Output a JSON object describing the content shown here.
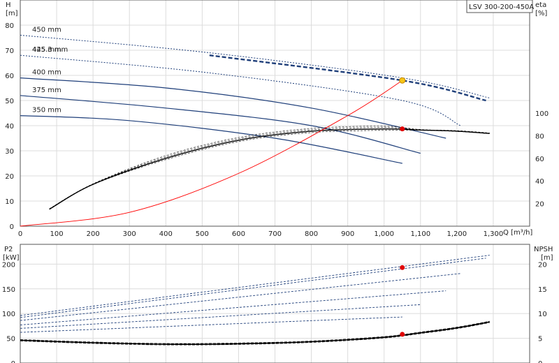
{
  "chart_data": [
    {
      "type": "line",
      "title": "LSV 300-200-450A",
      "xlabel": "Q [m³/h]",
      "ylabel_left": "H",
      "ylabel_left_unit": "[m]",
      "ylabel_right": "eta",
      "ylabel_right_unit": "[%]",
      "xlim": [
        0,
        1400
      ],
      "ylim_left": [
        0,
        90
      ],
      "ylim_right": [
        0,
        100
      ],
      "x_ticks": [
        "0",
        "100",
        "200",
        "300",
        "400",
        "500",
        "600",
        "700",
        "800",
        "900",
        "1,000",
        "1,100",
        "1,200",
        "1,300"
      ],
      "y_ticks_left": [
        "0",
        "10",
        "20",
        "30",
        "40",
        "50",
        "60",
        "70",
        "80"
      ],
      "y_ticks_right": [
        "20",
        "40",
        "60",
        "80",
        "100"
      ],
      "grid": true,
      "head_series": [
        {
          "name": "450 mm",
          "style": "dotted",
          "x": [
            0,
            520,
            1050,
            1290
          ],
          "y": [
            76,
            69,
            59,
            51
          ]
        },
        {
          "name": "445.3 mm",
          "style": "bold-dashed",
          "x": [
            520,
            1050,
            1280
          ],
          "y": [
            68,
            58,
            50
          ]
        },
        {
          "name": "425 mm",
          "style": "dotted",
          "x": [
            0,
            520,
            1050,
            1210
          ],
          "y": [
            68,
            61,
            50,
            40
          ]
        },
        {
          "name": "400 mm",
          "style": "solid-dashed",
          "x": [
            0,
            400,
            800,
            1170
          ],
          "y": [
            59,
            55,
            47,
            35
          ]
        },
        {
          "name": "375 mm",
          "style": "solid-dashed",
          "x": [
            0,
            400,
            800,
            1100
          ],
          "y": [
            52,
            47,
            40,
            29
          ]
        },
        {
          "name": "350 mm",
          "style": "solid-dashed",
          "x": [
            0,
            300,
            700,
            1050
          ],
          "y": [
            44,
            42,
            35,
            25
          ]
        }
      ],
      "efficiency_series": {
        "name": "eta",
        "x": [
          80,
          200,
          400,
          600,
          800,
          1000,
          1100,
          1200,
          1290
        ],
        "y": [
          15,
          37,
          60,
          76,
          84,
          86,
          85,
          84,
          82
        ]
      },
      "system_curve": {
        "x": [
          0,
          300,
          600,
          900,
          1050
        ],
        "y": [
          0,
          5.5,
          21,
          44,
          58
        ]
      },
      "duty_point_head": {
        "x": 1050,
        "y": 58
      },
      "duty_point_eta": {
        "x": 1050,
        "y": 86
      }
    },
    {
      "type": "line",
      "ylabel_left": "P2",
      "ylabel_left_unit": "[kW]",
      "ylabel_right": "NPSH",
      "ylabel_right_unit": "[m]",
      "xlim": [
        0,
        1400
      ],
      "ylim_left": [
        0,
        240
      ],
      "ylim_right": [
        0,
        24
      ],
      "y_ticks_left": [
        "0",
        "50",
        "100",
        "150",
        "200"
      ],
      "y_ticks_right": [
        "0",
        "5",
        "10",
        "15",
        "20"
      ],
      "grid": true,
      "power_series": [
        {
          "name": "450 mm",
          "x": [
            0,
            1290
          ],
          "y": [
            96,
            218
          ]
        },
        {
          "name": "445.3 mm",
          "x": [
            0,
            1280
          ],
          "y": [
            92,
            212
          ]
        },
        {
          "name": "425 mm",
          "x": [
            0,
            1210
          ],
          "y": [
            86,
            181
          ]
        },
        {
          "name": "400 mm",
          "x": [
            0,
            1170
          ],
          "y": [
            77,
            146
          ]
        },
        {
          "name": "375 mm",
          "x": [
            0,
            1100
          ],
          "y": [
            70,
            118
          ]
        },
        {
          "name": "350 mm",
          "x": [
            0,
            1050
          ],
          "y": [
            62,
            93
          ]
        }
      ],
      "npsh_series": {
        "name": "NPSH",
        "x": [
          0,
          200,
          400,
          600,
          800,
          1000,
          1100,
          1200,
          1290
        ],
        "y": [
          4.6,
          4.1,
          3.8,
          3.9,
          4.3,
          5.2,
          6.1,
          7.1,
          8.3
        ]
      },
      "duty_point_power": {
        "x": 1050,
        "y": 193
      },
      "duty_point_npsh": {
        "x": 1050,
        "y": 5.8
      }
    }
  ],
  "colors": {
    "head_curve": "#1f3f7a",
    "efficiency": "#000000",
    "system_curve": "#ff0000",
    "duty_point": "#e00000",
    "duty_point_head": "#f5c518"
  }
}
